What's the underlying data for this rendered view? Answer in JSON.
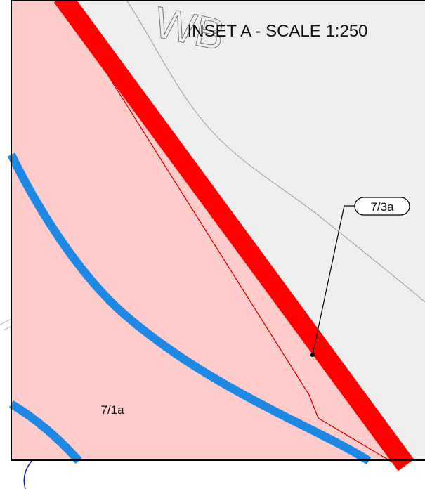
{
  "watermark": "WB",
  "title": "INSET A - SCALE 1:250",
  "labels": [
    "7/3a",
    "7/1a"
  ]
}
